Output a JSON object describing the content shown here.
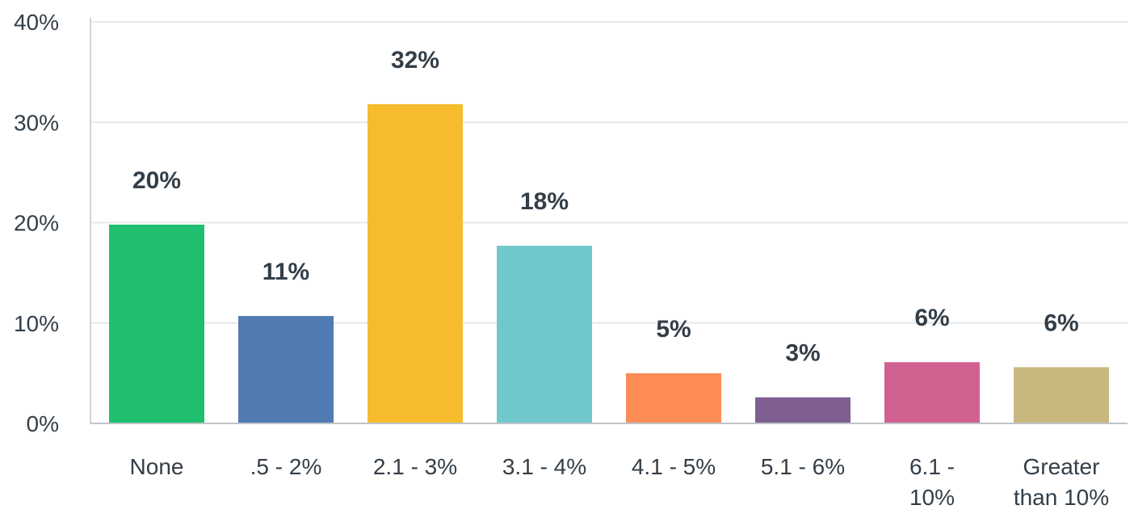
{
  "chart_data": {
    "type": "bar",
    "categories": [
      [
        "None"
      ],
      [
        ".5 - 2%"
      ],
      [
        "2.1 - 3%"
      ],
      [
        "3.1 - 4%"
      ],
      [
        "4.1 - 5%"
      ],
      [
        "5.1 - 6%"
      ],
      [
        "6.1 -",
        "10%"
      ],
      [
        "Greater",
        "than 10%"
      ]
    ],
    "values": [
      19.8,
      10.7,
      31.8,
      17.7,
      5.0,
      2.6,
      6.1,
      5.6
    ],
    "data_labels": [
      "20%",
      "11%",
      "32%",
      "18%",
      "5%",
      "3%",
      "6%",
      "6%"
    ],
    "colors": [
      "#1fbf6f",
      "#517bb3",
      "#f6bc2e",
      "#71c8cc",
      "#fd8c56",
      "#7f5f92",
      "#d06090",
      "#c8b77e"
    ],
    "ylim": [
      0,
      40
    ],
    "yticks": [
      0,
      10,
      20,
      30,
      40
    ],
    "ytick_labels": [
      "0%",
      "10%",
      "20%",
      "30%",
      "40%"
    ],
    "title": "",
    "xlabel": "",
    "ylabel": "",
    "grid": true,
    "legend": "none"
  }
}
